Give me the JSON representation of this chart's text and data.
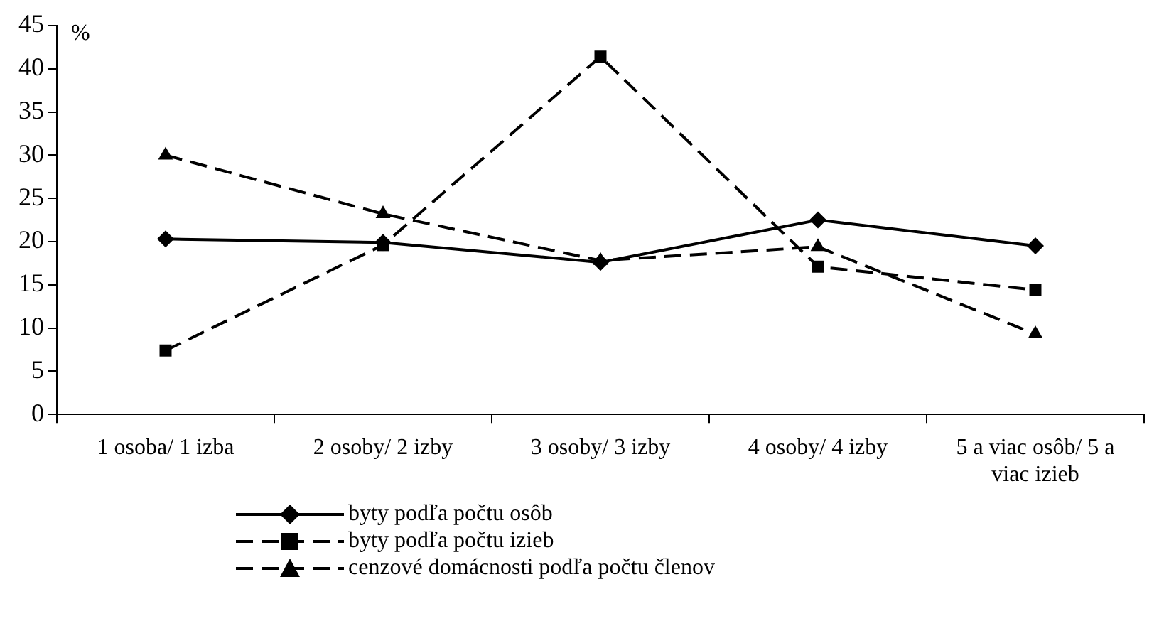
{
  "chart_data": {
    "type": "line",
    "ylabel": "%",
    "categories": [
      "1 osoba/ 1 izba",
      "2 osoby/ 2 izby",
      "3 osoby/ 3 izby",
      "4 osoby/ 4 izby",
      "5 a viac osôb/ 5 a viac izieb"
    ],
    "series": [
      {
        "name": "byty podľa počtu osôb",
        "color": "#000000",
        "marker": "diamond",
        "line_style": "solid",
        "values": [
          20.3,
          19.9,
          17.6,
          22.5,
          19.5
        ]
      },
      {
        "name": "byty podľa počtu izieb",
        "color": "#000000",
        "marker": "square",
        "line_style": "dashed",
        "values": [
          7.4,
          19.6,
          41.4,
          17.1,
          14.4
        ]
      },
      {
        "name": "cenzové domácnosti podľa počtu členov",
        "color": "#000000",
        "marker": "triangle",
        "line_style": "dashed",
        "values": [
          30.0,
          23.2,
          17.8,
          19.4,
          9.3
        ]
      }
    ],
    "ylim": [
      0,
      45
    ],
    "yticks": [
      0,
      5,
      10,
      15,
      20,
      25,
      30,
      35,
      40,
      45
    ],
    "grid": false,
    "legend": "bottom"
  }
}
